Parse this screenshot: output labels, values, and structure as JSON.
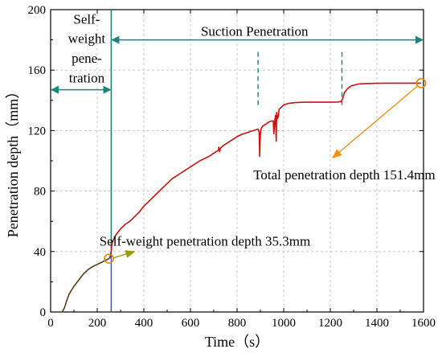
{
  "chart_data": {
    "type": "line",
    "xlabel": "Time（s）",
    "ylabel": "Penetration depth（mm）",
    "xlim": [
      0,
      1600
    ],
    "ylim": [
      0,
      200
    ],
    "xticks": [
      "0",
      "200",
      "400",
      "600",
      "800",
      "1000",
      "1200",
      "1400",
      "1600"
    ],
    "yticks": [
      "0",
      "40",
      "80",
      "120",
      "160",
      "200"
    ],
    "grid": true,
    "series": [
      {
        "name": "",
        "color_early": "#5a3a16",
        "color_late": "#cc1111",
        "x": [
          50,
          60,
          70,
          80,
          100,
          120,
          140,
          160,
          180,
          200,
          220,
          240,
          250,
          255,
          260,
          262,
          265,
          270,
          280,
          290,
          300,
          320,
          340,
          360,
          380,
          400,
          420,
          440,
          460,
          480,
          500,
          520,
          540,
          560,
          580,
          600,
          620,
          640,
          660,
          680,
          700,
          720,
          722,
          725,
          728,
          730,
          740,
          760,
          780,
          800,
          820,
          840,
          860,
          880,
          890,
          895,
          897,
          900,
          903,
          906,
          910,
          920,
          940,
          955,
          958,
          962,
          965,
          968,
          970,
          974,
          978,
          980,
          1000,
          1020,
          1050,
          1080,
          1100,
          1150,
          1200,
          1230,
          1245,
          1250,
          1255,
          1260,
          1270,
          1280,
          1290,
          1300,
          1320,
          1350,
          1400,
          1450,
          1500,
          1550,
          1590
        ],
        "y": [
          0,
          3,
          8,
          12,
          17,
          21,
          25,
          28,
          30,
          31.5,
          33,
          34.5,
          35.3,
          36,
          40,
          44,
          46,
          48,
          51,
          53,
          55,
          58,
          60,
          63,
          66,
          70,
          73,
          76,
          79,
          82,
          85,
          88,
          90,
          92,
          94,
          96,
          98,
          100,
          101.5,
          103,
          105,
          107,
          109,
          106,
          108,
          108.5,
          110,
          112,
          114,
          116,
          117.5,
          118.5,
          119.5,
          120.5,
          121,
          119,
          103,
          118,
          121,
          122,
          123,
          124,
          126,
          126.5,
          118,
          127,
          130,
          113,
          132,
          128,
          130,
          134,
          137,
          138,
          138.5,
          138.7,
          138.8,
          138.8,
          138.8,
          138.9,
          139.2,
          140,
          142,
          145,
          147,
          148.5,
          149.5,
          150,
          150.8,
          151.1,
          151.3,
          151.4,
          151.4,
          151.4,
          151.4
        ]
      }
    ],
    "annotations": {
      "self_weight_label_lines": [
        "Self-",
        "weight",
        "pene-",
        "tration"
      ],
      "suction_label": "Suction Penetration",
      "total_depth_label": "Total penetration depth 151.4mm",
      "self_weight_depth_label": "Self-weight penetration depth 35.3mm",
      "self_weight_end_x": 260,
      "suction_marker_x": [
        890,
        1250
      ],
      "total_depth_point": [
        1590,
        151.4
      ],
      "self_weight_point": [
        250,
        35.3
      ],
      "phase_arrow_color": "#17877a",
      "arrow_color_total": "#f0920d",
      "arrow_color_self": "#9a9a10",
      "marker_color": "#e8820c"
    }
  }
}
